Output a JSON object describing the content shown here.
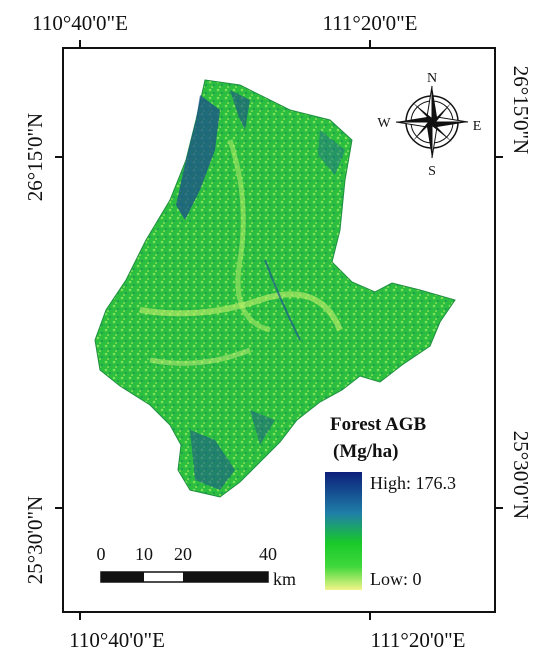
{
  "map": {
    "top_labels": [
      "110°40'0\"E",
      "111°20'0\"E"
    ],
    "bottom_labels": [
      "110°40'0\"E",
      "111°20'0\"E"
    ],
    "left_labels": [
      "26°15'0\"N",
      "25°30'0\"N"
    ],
    "right_labels": [
      "26°15'0\"N",
      "25°30'0\"N"
    ],
    "compass": {
      "n": "N",
      "s": "S",
      "e": "E",
      "w": "W"
    },
    "legend": {
      "title": "Forest AGB",
      "unit": "(Mg/ha)",
      "high": "High: 176.3",
      "low": "Low: 0"
    },
    "scale_bar": {
      "labels": [
        "0",
        "10",
        "20",
        "40"
      ],
      "unit": "km"
    }
  }
}
